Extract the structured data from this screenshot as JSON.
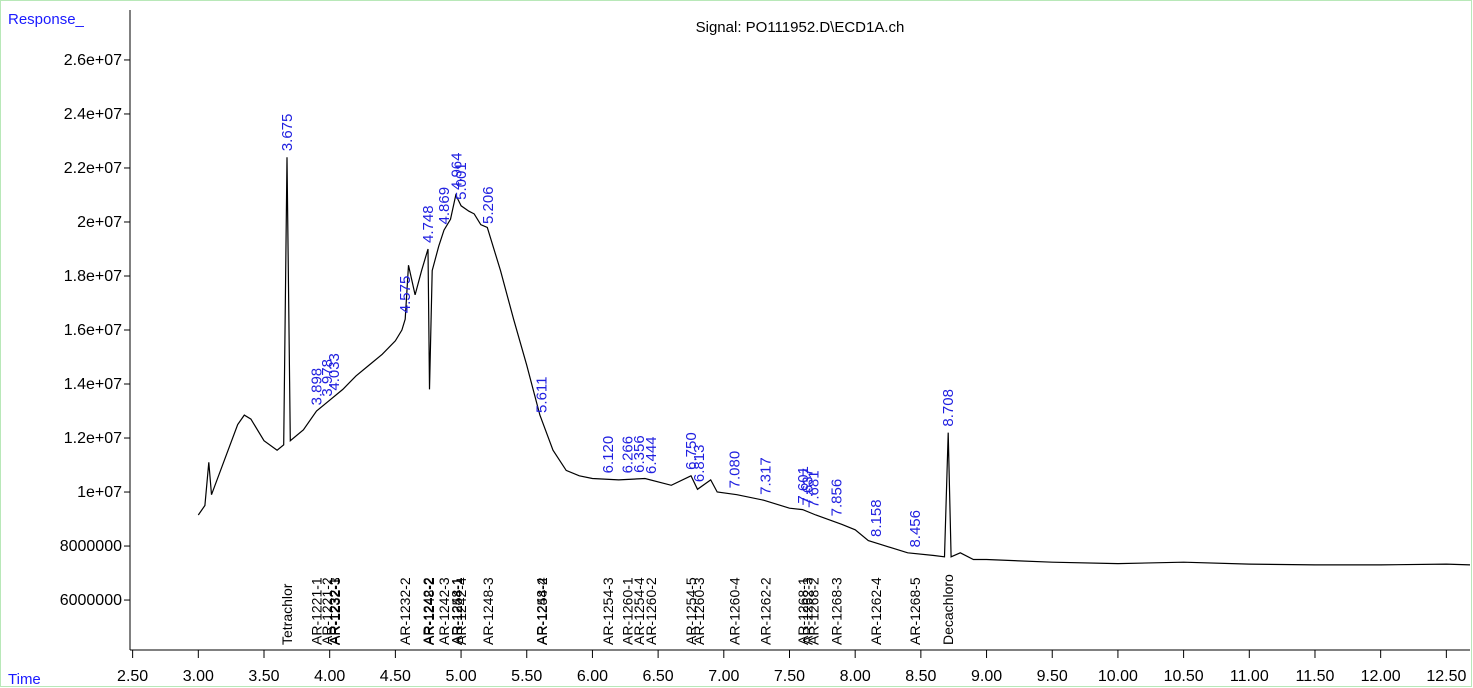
{
  "chart_data": {
    "type": "line",
    "title": "Signal: PO111952.D\\ECD1A.ch",
    "ylabel": "Response_",
    "xlabel": "Time",
    "x": [
      3.0,
      3.05,
      3.08,
      3.1,
      3.2,
      3.3,
      3.35,
      3.4,
      3.5,
      3.6,
      3.65,
      3.675,
      3.7,
      3.8,
      3.9,
      4.0,
      4.1,
      4.2,
      4.3,
      4.4,
      4.5,
      4.55,
      4.575,
      4.6,
      4.65,
      4.7,
      4.748,
      4.76,
      4.78,
      4.83,
      4.87,
      4.92,
      4.96,
      5.0,
      5.06,
      5.1,
      5.15,
      5.2,
      5.3,
      5.4,
      5.5,
      5.6,
      5.7,
      5.8,
      5.9,
      6.0,
      6.2,
      6.4,
      6.6,
      6.75,
      6.8,
      6.9,
      6.95,
      7.1,
      7.3,
      7.5,
      7.6,
      7.7,
      7.9,
      8.0,
      8.1,
      8.2,
      8.4,
      8.6,
      8.68,
      8.708,
      8.73,
      8.8,
      8.9,
      9.0,
      9.5,
      10.0,
      10.5,
      11.0,
      11.5,
      12.0,
      12.5,
      12.68
    ],
    "series": [
      {
        "name": "ECD1A",
        "color": "#000000",
        "values": [
          9150000,
          9500000,
          11100000,
          9900000,
          11200000,
          12500000,
          12850000,
          12700000,
          11900000,
          11550000,
          11750000,
          22400000,
          11900000,
          12300000,
          13000000,
          13400000,
          13800000,
          14300000,
          14700000,
          15100000,
          15600000,
          16000000,
          16400000,
          18400000,
          17300000,
          18200000,
          19000000,
          13800000,
          18200000,
          19100000,
          19700000,
          20100000,
          21000000,
          20600000,
          20400000,
          20300000,
          19900000,
          19800000,
          18200000,
          16400000,
          14700000,
          12850000,
          11550000,
          10800000,
          10600000,
          10500000,
          10450000,
          10500000,
          10250000,
          10600000,
          10100000,
          10450000,
          10000000,
          9900000,
          9700000,
          9400000,
          9350000,
          9150000,
          8800000,
          8600000,
          8200000,
          8050000,
          7750000,
          7650000,
          7600000,
          12200000,
          7600000,
          7750000,
          7500000,
          7500000,
          7400000,
          7350000,
          7400000,
          7330000,
          7300000,
          7300000,
          7330000,
          7300000
        ]
      }
    ],
    "peaks": [
      {
        "value": 3.675,
        "label": "3.675"
      },
      {
        "value": 3.898,
        "label": "3.898"
      },
      {
        "value": 3.978,
        "label": "3.978"
      },
      {
        "value": 4.033,
        "label": "4.033"
      },
      {
        "value": 4.575,
        "label": "4.575"
      },
      {
        "value": 4.748,
        "label": "4.748"
      },
      {
        "value": 4.869,
        "label": "4.869"
      },
      {
        "value": 4.964,
        "label": "4.964"
      },
      {
        "value": 5.001,
        "label": "5.001"
      },
      {
        "value": 5.206,
        "label": "5.206"
      },
      {
        "value": 5.611,
        "label": "5.611"
      },
      {
        "value": 6.12,
        "label": "6.120"
      },
      {
        "value": 6.266,
        "label": "6.266"
      },
      {
        "value": 6.356,
        "label": "6.356"
      },
      {
        "value": 6.444,
        "label": "6.444"
      },
      {
        "value": 6.75,
        "label": "6.750"
      },
      {
        "value": 6.813,
        "label": "6.813"
      },
      {
        "value": 7.08,
        "label": "7.080"
      },
      {
        "value": 7.317,
        "label": "7.317"
      },
      {
        "value": 7.601,
        "label": "7.601"
      },
      {
        "value": 7.637,
        "label": "7.637"
      },
      {
        "value": 7.681,
        "label": "7.681"
      },
      {
        "value": 7.856,
        "label": "7.856"
      },
      {
        "value": 8.158,
        "label": "8.158"
      },
      {
        "value": 8.456,
        "label": "8.456"
      },
      {
        "value": 8.708,
        "label": "8.708"
      }
    ],
    "compounds": [
      {
        "name": "Tetrachlor",
        "x": 3.675
      },
      {
        "name": "AR-1221-1",
        "x": 3.898
      },
      {
        "name": "AR-1221-2",
        "x": 3.978
      },
      {
        "name": "AR-1232-1",
        "x": 4.033
      },
      {
        "name": "AR-1232-3",
        "x": 4.04
      },
      {
        "name": "AR-1232-2",
        "x": 4.575
      },
      {
        "name": "AR-1242-2",
        "x": 4.748
      },
      {
        "name": "AR-1248-2",
        "x": 4.755
      },
      {
        "name": "AR-1242-3",
        "x": 4.869
      },
      {
        "name": "AR-1248-1",
        "x": 4.964
      },
      {
        "name": "AR-1254-1",
        "x": 4.97
      },
      {
        "name": "AR-1242-4",
        "x": 5.001
      },
      {
        "name": "AR-1248-3",
        "x": 5.206
      },
      {
        "name": "AR-1248-4",
        "x": 5.611
      },
      {
        "name": "AR-1254-2",
        "x": 5.615
      },
      {
        "name": "AR-1254-3",
        "x": 6.12
      },
      {
        "name": "AR-1260-1",
        "x": 6.266
      },
      {
        "name": "AR-1254-4",
        "x": 6.356
      },
      {
        "name": "AR-1260-2",
        "x": 6.444
      },
      {
        "name": "AR-1254-5",
        "x": 6.75
      },
      {
        "name": "AR-1260-3",
        "x": 6.813
      },
      {
        "name": "AR-1260-4",
        "x": 7.08
      },
      {
        "name": "AR-1262-2",
        "x": 7.317
      },
      {
        "name": "AR-1268-1",
        "x": 7.601
      },
      {
        "name": "AR-1262-3",
        "x": 7.637
      },
      {
        "name": "AR-1268-2",
        "x": 7.681
      },
      {
        "name": "AR-1268-3",
        "x": 7.856
      },
      {
        "name": "AR-1262-4",
        "x": 8.158
      },
      {
        "name": "AR-1268-5",
        "x": 8.456
      },
      {
        "name": "Decachloro",
        "x": 8.708
      }
    ],
    "xlim": [
      2.48,
      12.68
    ],
    "xticks": [
      {
        "value": 2.5,
        "label": "2.50"
      },
      {
        "value": 3,
        "label": "3.00"
      },
      {
        "value": 3.5,
        "label": "3.50"
      },
      {
        "value": 4,
        "label": "4.00"
      },
      {
        "value": 4.5,
        "label": "4.50"
      },
      {
        "value": 5,
        "label": "5.00"
      },
      {
        "value": 5.5,
        "label": "5.50"
      },
      {
        "value": 6,
        "label": "6.00"
      },
      {
        "value": 6.5,
        "label": "6.50"
      },
      {
        "value": 7,
        "label": "7.00"
      },
      {
        "value": 7.5,
        "label": "7.50"
      },
      {
        "value": 8,
        "label": "8.00"
      },
      {
        "value": 8.5,
        "label": "8.50"
      },
      {
        "value": 9,
        "label": "9.00"
      },
      {
        "value": 9.5,
        "label": "9.50"
      },
      {
        "value": 10,
        "label": "10.00"
      },
      {
        "value": 10.5,
        "label": "10.50"
      },
      {
        "value": 11,
        "label": "11.00"
      },
      {
        "value": 11.5,
        "label": "11.50"
      },
      {
        "value": 12,
        "label": "12.00"
      },
      {
        "value": 12.5,
        "label": "12.50"
      }
    ],
    "ylim": [
      4150000,
      27850000
    ],
    "yticks": [
      6000000,
      8000000,
      {
        "value": 10000000,
        "label": "1e+07"
      },
      {
        "value": 12000000,
        "label": "1.2e+07"
      },
      {
        "value": 14000000,
        "label": "1.4e+07"
      },
      {
        "value": 16000000,
        "label": "1.6e+07"
      },
      {
        "value": 18000000,
        "label": "1.8e+07"
      },
      {
        "value": 20000000,
        "label": "2e+07"
      },
      {
        "value": 22000000,
        "label": "2.2e+07"
      },
      {
        "value": 24000000,
        "label": "2.4e+07"
      },
      {
        "value": 26000000,
        "label": "2.6e+07"
      }
    ],
    "peak_color": "#2020e0",
    "label_color": "#1a1aff"
  }
}
